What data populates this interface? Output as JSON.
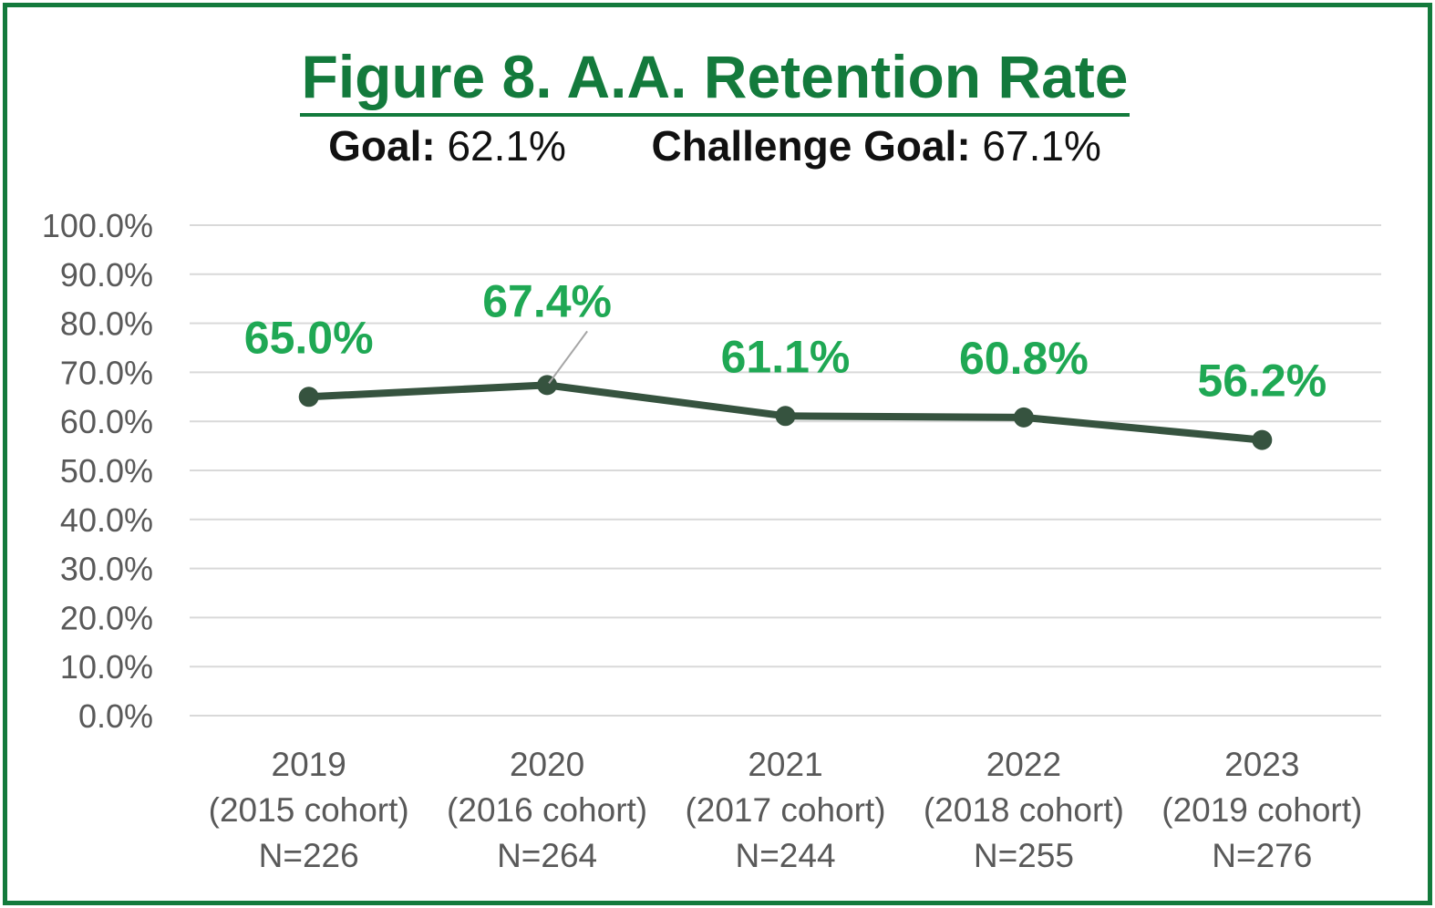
{
  "chart_data": {
    "type": "line",
    "title": "Figure 8. A.A. Retention Rate",
    "subtitle": {
      "goal_label": "Goal:",
      "goal_value": "62.1%",
      "challenge_label": "Challenge Goal:",
      "challenge_value": "67.1%"
    },
    "categories": [
      [
        "2019",
        "(2015 cohort)",
        "N=226"
      ],
      [
        "2020",
        "(2016 cohort)",
        "N=264"
      ],
      [
        "2021",
        "(2017 cohort)",
        "N=244"
      ],
      [
        "2022",
        "(2018 cohort)",
        "N=255"
      ],
      [
        "2023",
        "(2019 cohort)",
        "N=276"
      ]
    ],
    "series": [
      {
        "values": [
          65.0,
          67.4,
          61.1,
          60.8,
          56.2
        ],
        "data_labels": [
          "65.0%",
          "67.4%",
          "61.1%",
          "60.8%",
          "56.2%"
        ]
      }
    ],
    "ylim": [
      0,
      100
    ],
    "yticks": [
      "0.0%",
      "10.0%",
      "20.0%",
      "30.0%",
      "40.0%",
      "50.0%",
      "60.0%",
      "70.0%",
      "80.0%",
      "90.0%",
      "100.0%"
    ],
    "grid": true,
    "legend": "none",
    "colors": {
      "frame": "#137a3c",
      "title": "#137a3c",
      "line": "#36533f",
      "data_label": "#1fa854",
      "grid": "#d9d9d9",
      "tick_text": "#595959"
    }
  }
}
